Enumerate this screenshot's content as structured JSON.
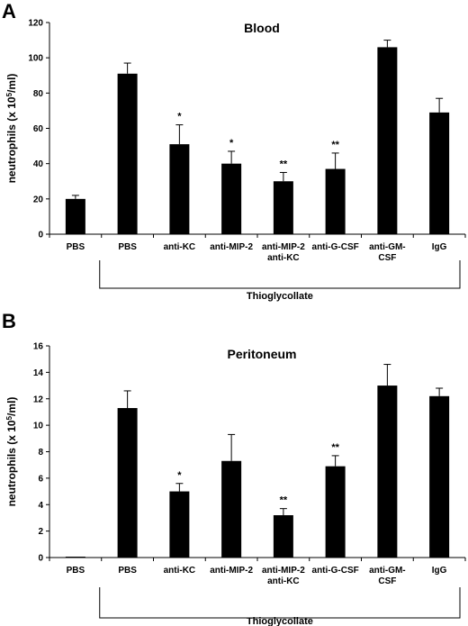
{
  "chart_data": [
    {
      "type": "bar",
      "panel_label": "A",
      "title": "Blood",
      "ylabel": "neutrophils (x 10",
      "ylabel_sup": "5",
      "ylabel_tail": "/ml)",
      "ylim": [
        0,
        120
      ],
      "yticks": [
        0,
        20,
        40,
        60,
        80,
        100,
        120
      ],
      "categories": [
        [
          "PBS"
        ],
        [
          "PBS"
        ],
        [
          "anti-KC"
        ],
        [
          "anti-MIP-2"
        ],
        [
          "anti-MIP-2",
          "anti-KC"
        ],
        [
          "anti-G-CSF"
        ],
        [
          "anti-GM-",
          "CSF"
        ],
        [
          "IgG"
        ]
      ],
      "values": [
        20,
        91,
        51,
        40,
        30,
        37,
        106,
        69
      ],
      "errors": [
        2,
        6,
        11,
        7,
        5,
        9,
        4,
        8
      ],
      "significance": [
        "",
        "",
        "*",
        "*",
        "**",
        "**",
        "",
        ""
      ],
      "group_label": "Thioglycollate",
      "group_span": [
        1,
        7
      ],
      "bar_color": "#000000",
      "grid": false
    },
    {
      "type": "bar",
      "panel_label": "B",
      "title": "Peritoneum",
      "ylabel": "neutrophils (x 10",
      "ylabel_sup": "5",
      "ylabel_tail": "/ml)",
      "ylim": [
        0,
        16
      ],
      "yticks": [
        0,
        2,
        4,
        6,
        8,
        10,
        12,
        14,
        16
      ],
      "categories": [
        [
          "PBS"
        ],
        [
          "PBS"
        ],
        [
          "anti-KC"
        ],
        [
          "anti-MIP-2"
        ],
        [
          "anti-MIP-2",
          "anti-KC"
        ],
        [
          "anti-G-CSF"
        ],
        [
          "anti-GM-",
          "CSF"
        ],
        [
          "IgG"
        ]
      ],
      "values": [
        0.05,
        11.3,
        5.0,
        7.3,
        3.2,
        6.9,
        13.0,
        12.2
      ],
      "errors": [
        0,
        1.3,
        0.6,
        2.0,
        0.5,
        0.8,
        1.6,
        0.6
      ],
      "significance": [
        "",
        "",
        "*",
        "",
        "**",
        "**",
        "",
        ""
      ],
      "group_label": "Thioglycollate",
      "group_span": [
        1,
        7
      ],
      "bar_color": "#000000",
      "grid": false
    }
  ]
}
